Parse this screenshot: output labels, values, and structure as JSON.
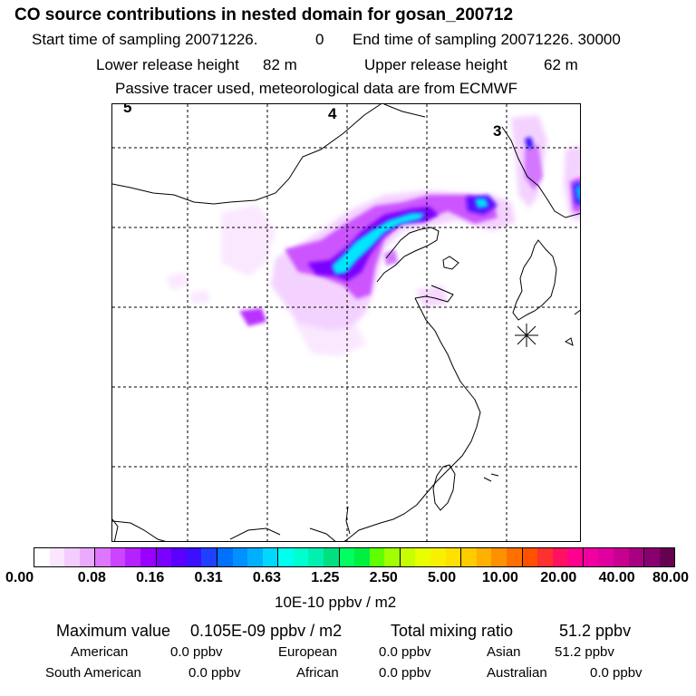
{
  "header": {
    "title": "CO  source contributions in nested domain for gosan_200712",
    "start_label": "Start time of sampling 20071226.",
    "start_value": "0",
    "end_label": "End time of sampling 20071226. 30000",
    "lower_label": "Lower release height",
    "lower_value": "82 m",
    "upper_label": "Upper release height",
    "upper_value": "62 m",
    "note": "Passive tracer used, meteorological data are from ECMWF"
  },
  "map": {
    "trajectory_labels": [
      "5",
      "4",
      "3"
    ],
    "receptor_marker": "gosan-receptor"
  },
  "legend": {
    "unit": "10E-10 ppbv / m2",
    "tick_labels": [
      "0.00",
      "0.08",
      "0.16",
      "0.31",
      "0.63",
      "1.25",
      "2.50",
      "5.00",
      "10.00",
      "20.00",
      "40.00",
      "80.00"
    ],
    "colors": [
      "#ffffff",
      "#fbe6ff",
      "#f5ccff",
      "#ecaaff",
      "#dd77ff",
      "#cc44ff",
      "#b522ff",
      "#9a00ff",
      "#7a00ff",
      "#5a00ff",
      "#3a10ff",
      "#2040ff",
      "#0070ff",
      "#0090ff",
      "#00b0ff",
      "#00d8ff",
      "#00ffee",
      "#00ffd0",
      "#00f0b0",
      "#00e080",
      "#00ff60",
      "#00f040",
      "#60ff00",
      "#a0ff00",
      "#c8ff00",
      "#e8ff00",
      "#f8f000",
      "#ffe000",
      "#ffcc00",
      "#ffb000",
      "#ff9000",
      "#ff7000",
      "#ff5000",
      "#ff3030",
      "#ff1060",
      "#ff0090",
      "#f000a0",
      "#e000a0",
      "#c80090",
      "#a80080",
      "#880070",
      "#660050"
    ]
  },
  "stats": {
    "max_label": "Maximum value",
    "max_value": "0.105E-09 ppbv / m2",
    "total_label": "Total mixing ratio",
    "total_value": "51.2 ppbv",
    "regions": [
      {
        "name": "American",
        "value": "0.0 ppbv"
      },
      {
        "name": "European",
        "value": "0.0 ppbv"
      },
      {
        "name": "Asian",
        "value": "51.2 ppbv"
      },
      {
        "name": "South American",
        "value": "0.0 ppbv"
      },
      {
        "name": "African",
        "value": "0.0 ppbv"
      },
      {
        "name": "Australian",
        "value": "0.0 ppbv"
      }
    ]
  }
}
